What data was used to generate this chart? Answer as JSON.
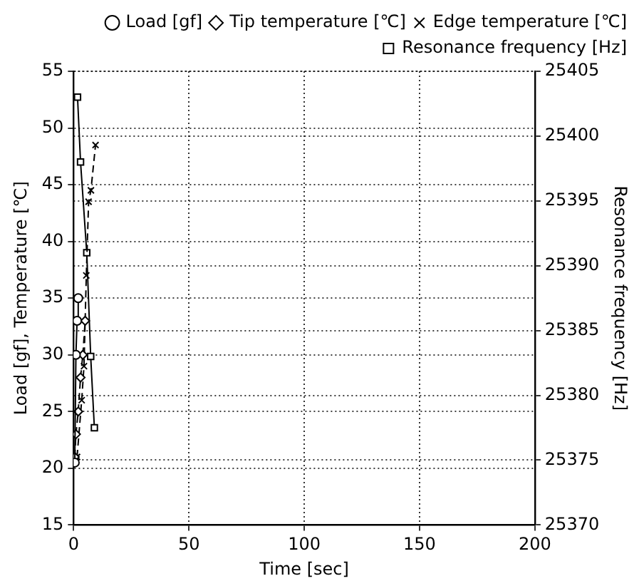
{
  "chart_data": {
    "type": "line",
    "xlabel": "Time [sec]",
    "ylabel": "Load [gf], Temperature [℃]",
    "y2label": "Resonance frequency [Hz]",
    "xlim": [
      0,
      200
    ],
    "xticks": [
      0,
      50,
      100,
      150,
      200
    ],
    "ylim": [
      15,
      55
    ],
    "yticks": [
      15,
      20,
      25,
      30,
      35,
      40,
      45,
      50,
      55
    ],
    "y2lim": [
      25370,
      25405
    ],
    "y2ticks": [
      25370,
      25375,
      25380,
      25385,
      25390,
      25395,
      25400,
      25405
    ],
    "grid": true,
    "legend": "top right",
    "series": [
      {
        "name": "Load [gf]",
        "color": "#000000",
        "marker": "circle",
        "line_style": "solid",
        "x": [
          0.5,
          1,
          1.5,
          2
        ],
        "values": [
          20.5,
          30,
          33,
          35
        ]
      },
      {
        "name": "Tip temperature [℃]",
        "color": "#000000",
        "marker": "diamond",
        "line_style": "dashed",
        "x": [
          0.5,
          1,
          2,
          3,
          4,
          5
        ],
        "values": [
          21,
          23,
          25,
          28,
          30,
          33
        ]
      },
      {
        "name": "Edge temperature [℃]",
        "color": "#000000",
        "marker": "cross",
        "line_style": "dashed",
        "x": [
          1.5,
          3.5,
          4.5,
          5.5,
          6.5,
          7.5,
          9.5
        ],
        "values": [
          21,
          26,
          29,
          37,
          43.5,
          44.5,
          48.5
        ]
      },
      {
        "name": "Resonance frequency [Hz]",
        "color": "#000000",
        "marker": "square",
        "line_style": "solid",
        "axis": "y2",
        "x": [
          1.7,
          3,
          5.7,
          7.4,
          9
        ],
        "values": [
          25403,
          25398,
          25391,
          25383,
          25377.5
        ]
      }
    ]
  }
}
